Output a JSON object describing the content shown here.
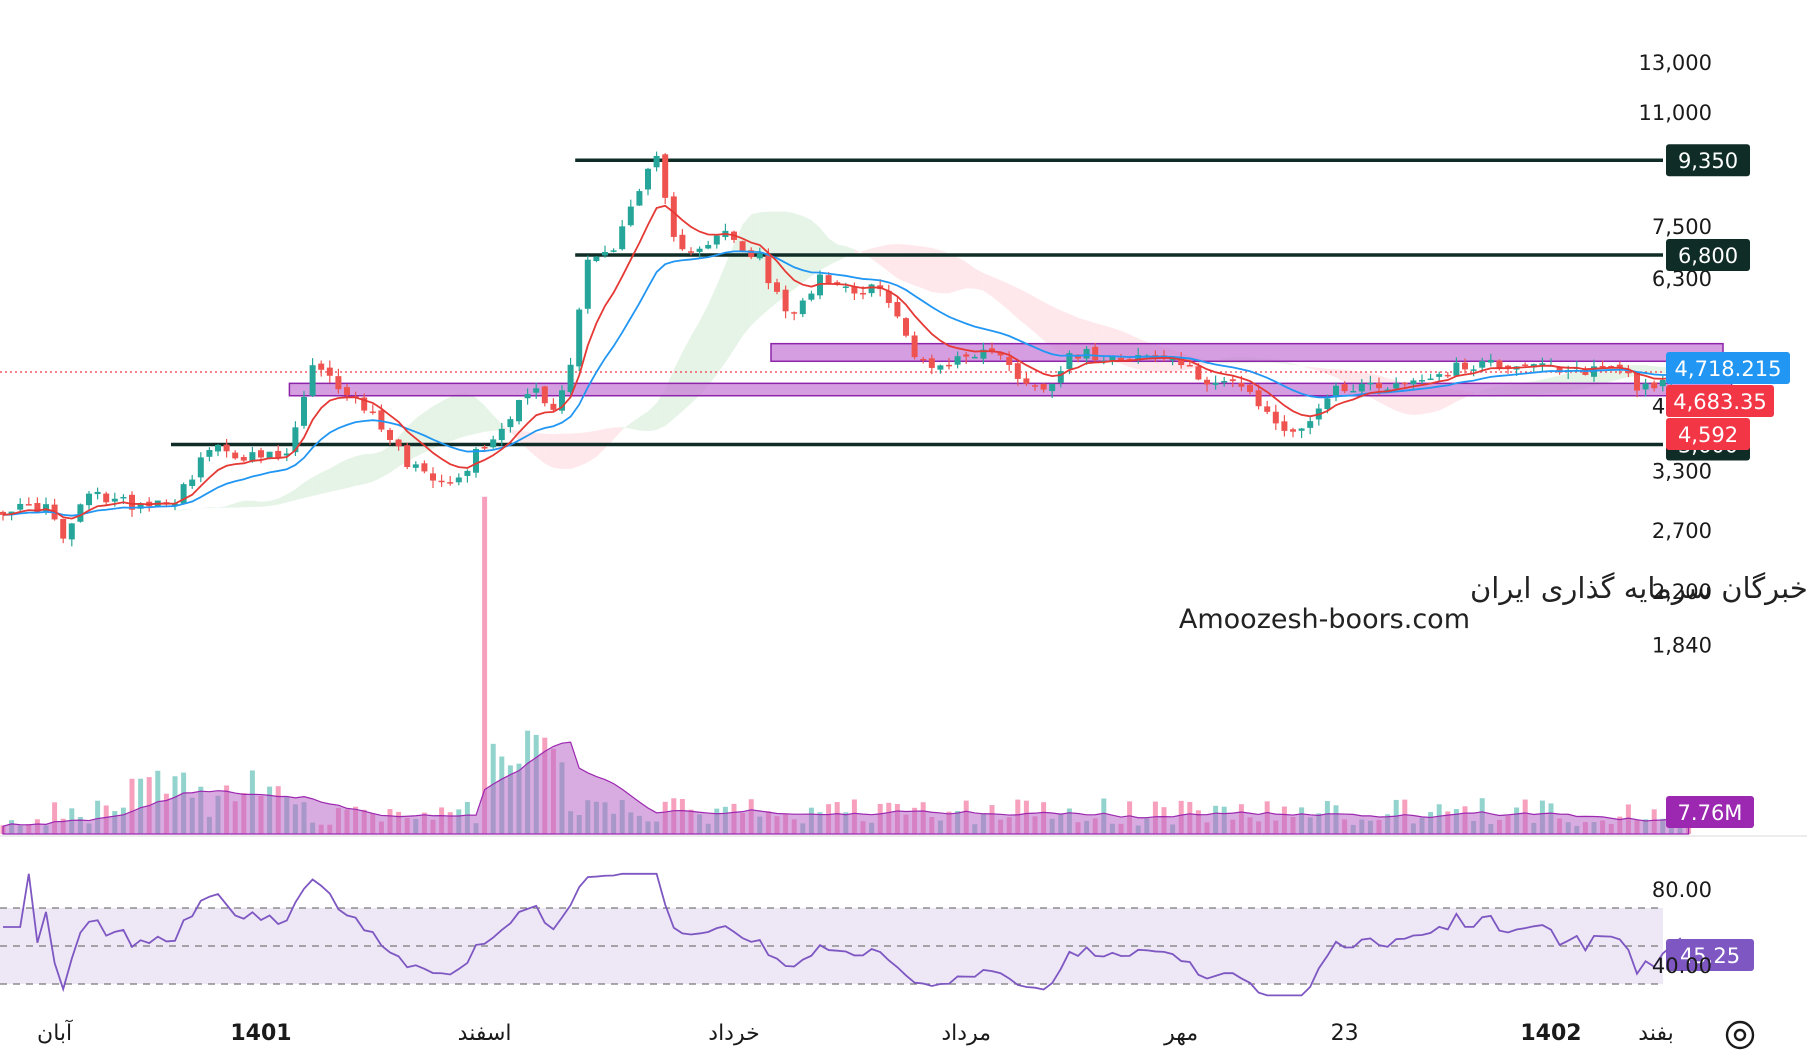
{
  "watermark": {
    "line1": "انجمن خبرگان سرمایه گذاری ایران",
    "line2": "Amoozesh-boors.com"
  },
  "colors": {
    "up": "#26a69a",
    "down": "#ef5350",
    "ema_fast": "#e53935",
    "ema_slow": "#2196f3",
    "zone_fill": "#c77dd6",
    "zone_stroke": "#8e24aa",
    "level_line": "#0f2d26",
    "price_tag_blue": "#2196f3",
    "price_tag_red": "#f23645",
    "volume_tag": "#9c27b0",
    "rsi_line": "#7e57c2",
    "rsi_band": "#ede7f6"
  },
  "chart_data": {
    "type": "candlestick",
    "scale": "log",
    "price_axis_ticks": [
      "13,000",
      "11,000",
      "9,350",
      "7,500",
      "6,800",
      "6,300",
      "4,718.215",
      "4,683.35",
      "4,592",
      "4,100",
      "3,600",
      "3,300",
      "2,700",
      "2,200",
      "1,840"
    ],
    "price_axis_values": [
      13000,
      11000,
      7500,
      6300,
      4100,
      3300,
      2700,
      2200,
      1840
    ],
    "ylim": [
      1660,
      14000
    ],
    "time_axis_labels": [
      "آبان",
      "1401",
      "اسفند",
      "خرداد",
      "مرداد",
      "مهر",
      "23",
      "1402",
      "بفند"
    ],
    "time_axis_positions": [
      6,
      30,
      56,
      85,
      112,
      137,
      156,
      180,
      203
    ],
    "bar_count": 197,
    "horizontal_levels": [
      {
        "price": 9350,
        "label": "9,350",
        "from_bar": 67
      },
      {
        "price": 6800,
        "label": "6,800",
        "from_bar": 67
      },
      {
        "price": 3600,
        "label": "3,600",
        "from_bar": 20
      }
    ],
    "zones": [
      {
        "top": 5050,
        "bottom": 4760,
        "from_bar": 90,
        "to_bar": 200
      },
      {
        "top": 4420,
        "bottom": 4240,
        "from_bar": 34,
        "to_bar": 201
      }
    ],
    "price_tags": [
      {
        "label": "4,718.215",
        "value": 4718.215,
        "color": "blue"
      },
      {
        "label": "4,683.35",
        "value": 4683.35,
        "color": "red"
      },
      {
        "label": "4,592",
        "value": 4592,
        "color": "red"
      }
    ],
    "last_price": 4592,
    "volume_tag": "7.76M",
    "rsi": {
      "label": "45.25",
      "value": 45.25,
      "ticks": [
        "80.00",
        "40.00"
      ],
      "upper": 70,
      "middle": 50,
      "lower": 30,
      "ylim": [
        20,
        90
      ]
    },
    "anchors": [
      [
        0,
        2900
      ],
      [
        5,
        2920
      ],
      [
        7,
        2620
      ],
      [
        10,
        3050
      ],
      [
        15,
        2950
      ],
      [
        20,
        3000
      ],
      [
        24,
        3550
      ],
      [
        29,
        3450
      ],
      [
        33,
        3450
      ],
      [
        36,
        4650
      ],
      [
        40,
        4300
      ],
      [
        44,
        3850
      ],
      [
        47,
        3400
      ],
      [
        50,
        3250
      ],
      [
        53,
        3200
      ],
      [
        55,
        3500
      ],
      [
        58,
        3800
      ],
      [
        60,
        4200
      ],
      [
        62,
        4300
      ],
      [
        64,
        4000
      ],
      [
        66,
        4700
      ],
      [
        68,
        6800
      ],
      [
        71,
        6900
      ],
      [
        74,
        8600
      ],
      [
        76,
        9300
      ],
      [
        78,
        7100
      ],
      [
        80,
        7000
      ],
      [
        82,
        7100
      ],
      [
        84,
        7300
      ],
      [
        86,
        6900
      ],
      [
        88,
        6700
      ],
      [
        90,
        5900
      ],
      [
        92,
        5500
      ],
      [
        95,
        6400
      ],
      [
        98,
        6100
      ],
      [
        101,
        6050
      ],
      [
        103,
        5900
      ],
      [
        106,
        4800
      ],
      [
        109,
        4700
      ],
      [
        113,
        4900
      ],
      [
        115,
        4950
      ],
      [
        118,
        4550
      ],
      [
        121,
        4300
      ],
      [
        124,
        4900
      ],
      [
        128,
        4850
      ],
      [
        132,
        4850
      ],
      [
        136,
        4800
      ],
      [
        139,
        4500
      ],
      [
        143,
        4450
      ],
      [
        147,
        4000
      ],
      [
        150,
        3700
      ],
      [
        152,
        3950
      ],
      [
        155,
        4350
      ],
      [
        158,
        4400
      ],
      [
        162,
        4400
      ],
      [
        165,
        4500
      ],
      [
        169,
        4650
      ],
      [
        172,
        4750
      ],
      [
        175,
        4700
      ],
      [
        178,
        4750
      ],
      [
        181,
        4550
      ],
      [
        185,
        4650
      ],
      [
        188,
        4700
      ],
      [
        190,
        4400
      ],
      [
        193,
        4400
      ],
      [
        196,
        4650
      ],
      [
        197,
        4592
      ]
    ]
  }
}
